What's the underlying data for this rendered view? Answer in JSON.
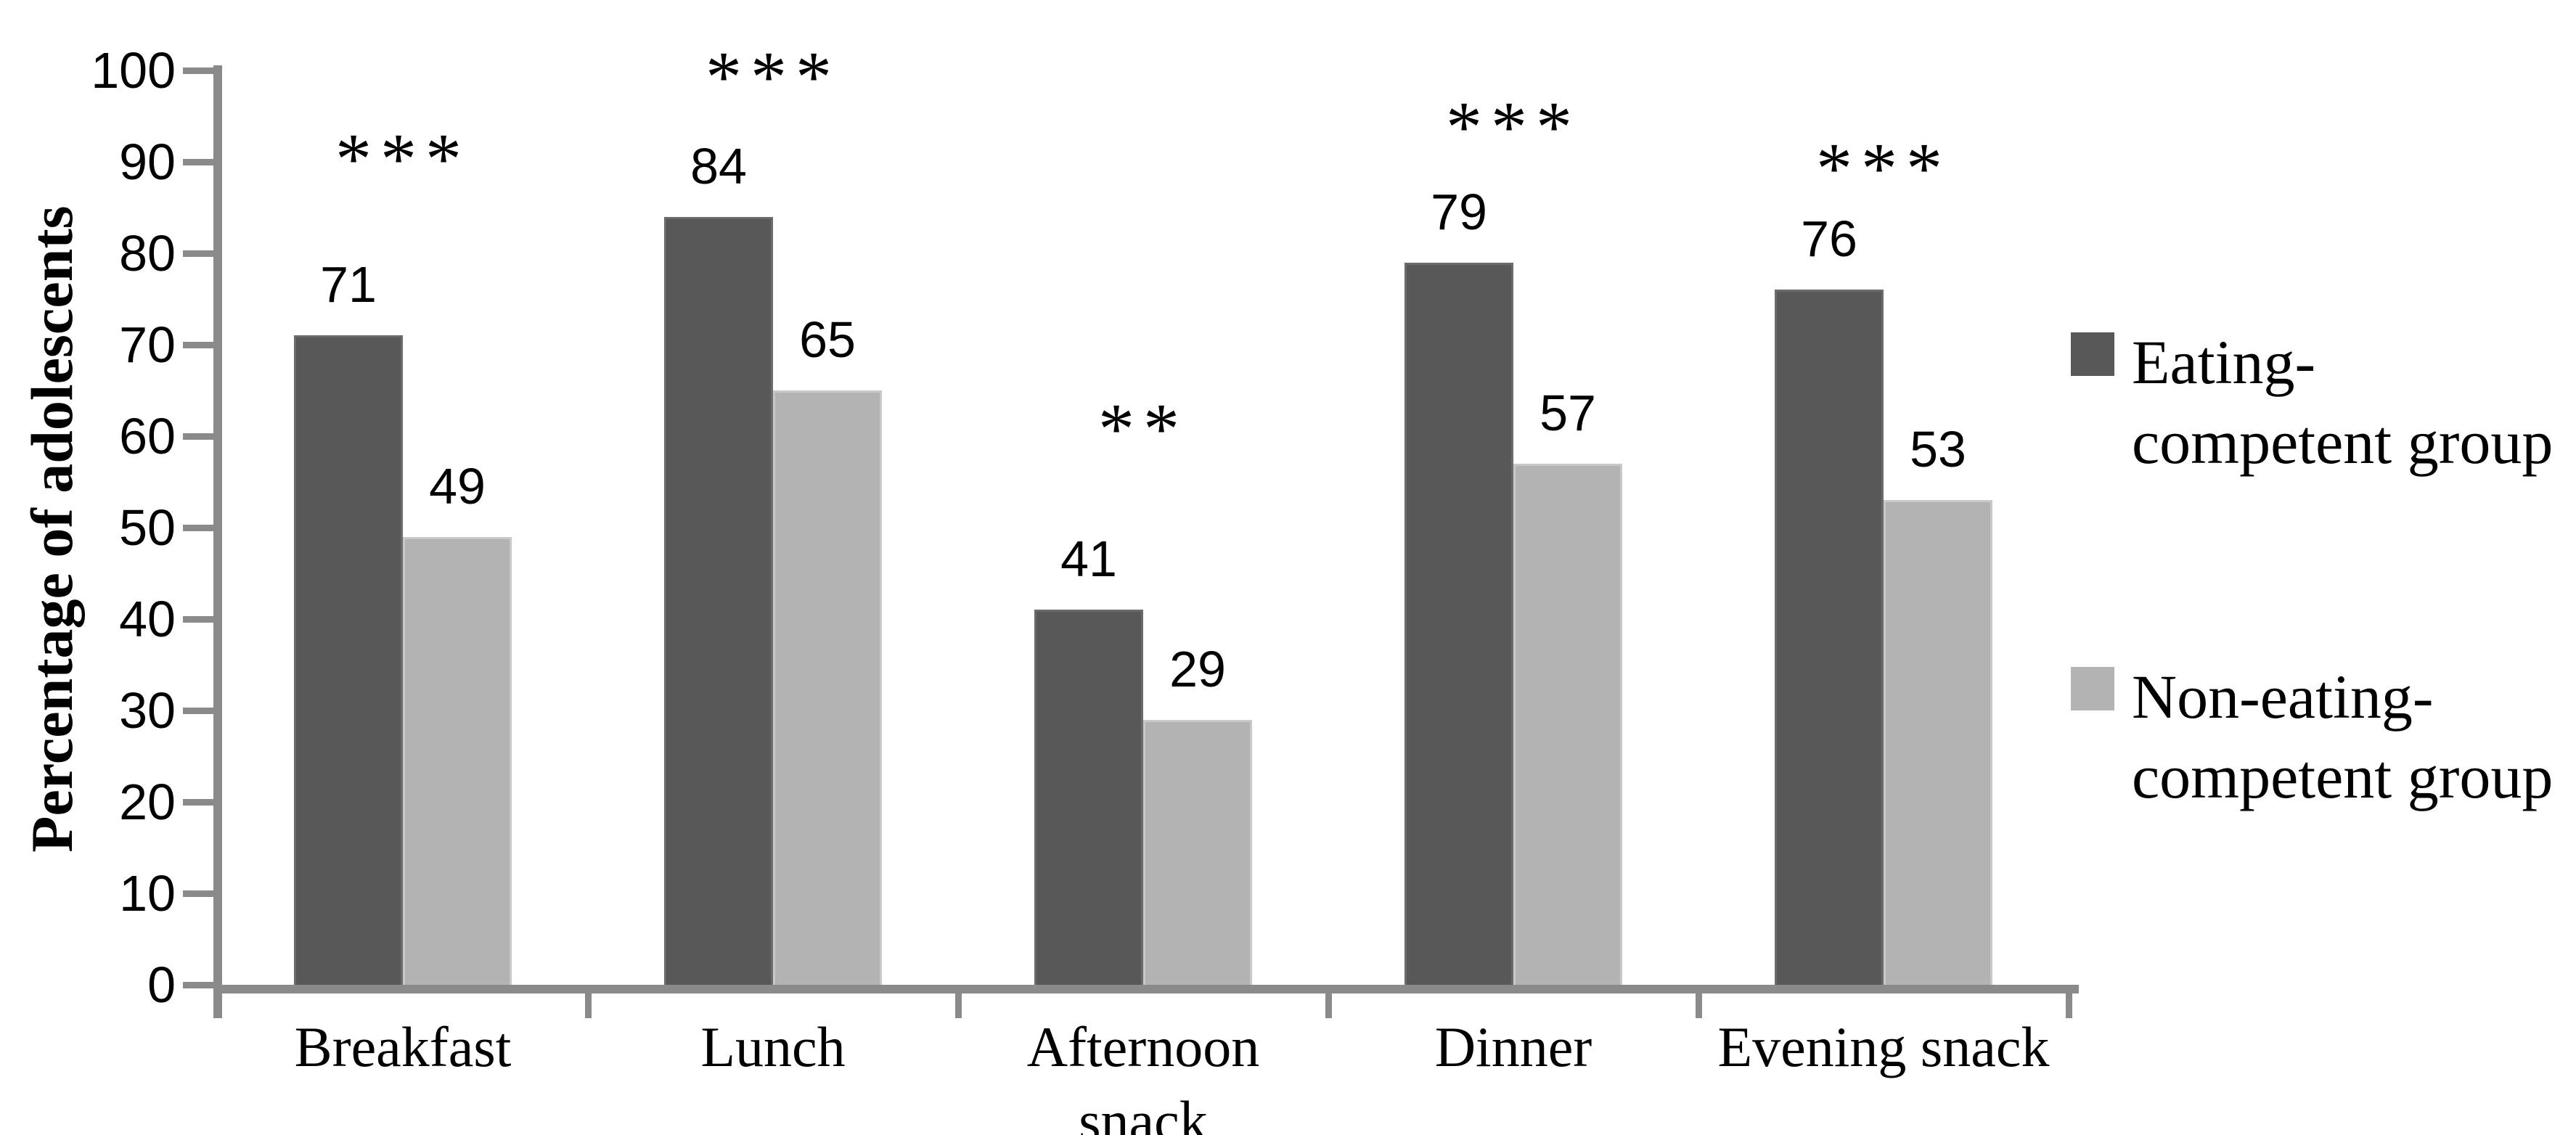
{
  "chart_data": {
    "type": "bar",
    "title": "",
    "xlabel": "",
    "ylabel": "Percentage of adolescents",
    "ylim": [
      0,
      100
    ],
    "yticks": [
      0,
      10,
      20,
      30,
      40,
      50,
      60,
      70,
      80,
      90,
      100
    ],
    "grid": false,
    "legend_position": "right",
    "axis_color": "#8a8a8a",
    "text_color": "#000000",
    "background_color": "#ffffff",
    "categories": [
      "Breakfast",
      "Lunch",
      "Afternoon snack",
      "Dinner",
      "Evening snack"
    ],
    "category_lines": [
      [
        "Breakfast"
      ],
      [
        "Lunch"
      ],
      [
        "Afternoon",
        "snack"
      ],
      [
        "Dinner"
      ],
      [
        "Evening snack"
      ]
    ],
    "series": [
      {
        "name": "Eating-competent group",
        "name_lines": [
          "Eating-",
          "competent group"
        ],
        "color": "#585858",
        "values": [
          71,
          84,
          41,
          79,
          76
        ]
      },
      {
        "name": "Non-eating-competent group",
        "name_lines": [
          "Non-eating-",
          "competent group"
        ],
        "color": "#b3b3b3",
        "values": [
          49,
          65,
          29,
          57,
          53
        ]
      }
    ],
    "significance": [
      "***",
      "***",
      "**",
      "***",
      "***"
    ],
    "sig_y": [
      91.5,
      100.5,
      62,
      95,
      90.5
    ]
  }
}
